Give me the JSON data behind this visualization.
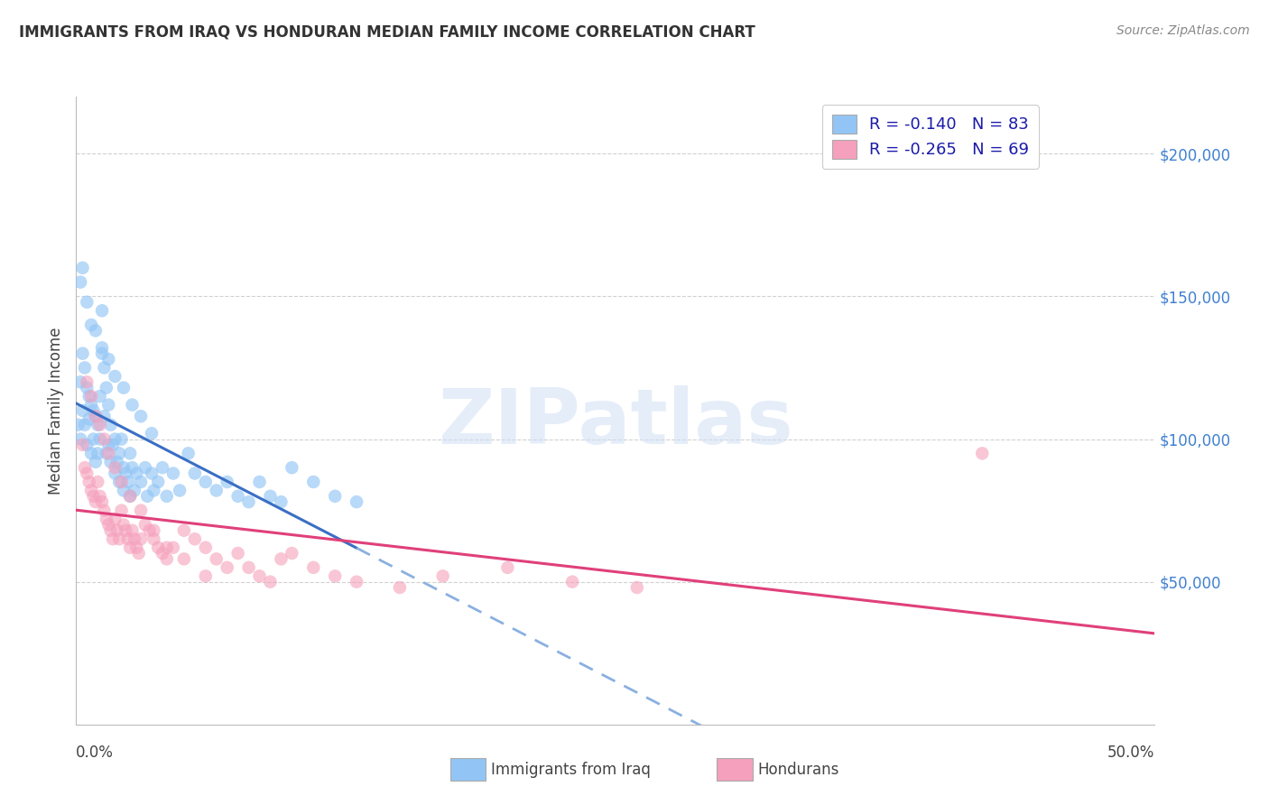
{
  "title": "IMMIGRANTS FROM IRAQ VS HONDURAN MEDIAN FAMILY INCOME CORRELATION CHART",
  "source": "Source: ZipAtlas.com",
  "ylabel": "Median Family Income",
  "ytick_labels": [
    "$50,000",
    "$100,000",
    "$150,000",
    "$200,000"
  ],
  "ytick_values": [
    50000,
    100000,
    150000,
    200000
  ],
  "ylim": [
    0,
    220000
  ],
  "xlim": [
    0.0,
    0.5
  ],
  "xtick_labels": [
    "0.0%",
    "50.0%"
  ],
  "legend_r1": "R = ",
  "legend_rv1": "-0.140",
  "legend_n1": "   N = ",
  "legend_nv1": "83",
  "legend_r2": "R = ",
  "legend_rv2": "-0.265",
  "legend_n2": "   N = ",
  "legend_nv2": "69",
  "legend_label1": "Immigrants from Iraq",
  "legend_label2": "Hondurans",
  "blue_color": "#92c5f5",
  "pink_color": "#f5a0bc",
  "blue_line_color": "#3a6fc4",
  "pink_line_color": "#e0407a",
  "blue_dashed_color": "#8ab0e0",
  "watermark_color": "#ccddf5",
  "background_color": "#ffffff",
  "grid_color": "#cccccc",
  "right_label_color": "#4080d0",
  "iraq_x": [
    0.001,
    0.002,
    0.002,
    0.003,
    0.003,
    0.004,
    0.004,
    0.005,
    0.005,
    0.006,
    0.006,
    0.007,
    0.007,
    0.008,
    0.008,
    0.009,
    0.009,
    0.01,
    0.01,
    0.011,
    0.011,
    0.012,
    0.012,
    0.013,
    0.013,
    0.014,
    0.014,
    0.015,
    0.015,
    0.016,
    0.016,
    0.017,
    0.018,
    0.018,
    0.019,
    0.02,
    0.02,
    0.021,
    0.022,
    0.022,
    0.023,
    0.024,
    0.025,
    0.025,
    0.026,
    0.027,
    0.028,
    0.03,
    0.032,
    0.033,
    0.035,
    0.036,
    0.038,
    0.04,
    0.042,
    0.045,
    0.048,
    0.052,
    0.055,
    0.06,
    0.065,
    0.07,
    0.075,
    0.08,
    0.085,
    0.09,
    0.095,
    0.1,
    0.11,
    0.12,
    0.13,
    0.002,
    0.003,
    0.005,
    0.007,
    0.009,
    0.012,
    0.015,
    0.018,
    0.022,
    0.026,
    0.03,
    0.035
  ],
  "iraq_y": [
    105000,
    120000,
    100000,
    130000,
    110000,
    125000,
    105000,
    118000,
    98000,
    115000,
    107000,
    112000,
    95000,
    110000,
    100000,
    108000,
    92000,
    105000,
    95000,
    115000,
    100000,
    145000,
    130000,
    125000,
    108000,
    118000,
    95000,
    112000,
    98000,
    105000,
    92000,
    98000,
    100000,
    88000,
    92000,
    95000,
    85000,
    100000,
    90000,
    82000,
    88000,
    85000,
    95000,
    80000,
    90000,
    82000,
    88000,
    85000,
    90000,
    80000,
    88000,
    82000,
    85000,
    90000,
    80000,
    88000,
    82000,
    95000,
    88000,
    85000,
    82000,
    85000,
    80000,
    78000,
    85000,
    80000,
    78000,
    90000,
    85000,
    80000,
    78000,
    155000,
    160000,
    148000,
    140000,
    138000,
    132000,
    128000,
    122000,
    118000,
    112000,
    108000,
    102000
  ],
  "honduran_x": [
    0.003,
    0.004,
    0.005,
    0.006,
    0.007,
    0.008,
    0.009,
    0.01,
    0.011,
    0.012,
    0.013,
    0.014,
    0.015,
    0.016,
    0.017,
    0.018,
    0.019,
    0.02,
    0.021,
    0.022,
    0.023,
    0.024,
    0.025,
    0.026,
    0.027,
    0.028,
    0.029,
    0.03,
    0.032,
    0.034,
    0.036,
    0.038,
    0.04,
    0.042,
    0.045,
    0.05,
    0.055,
    0.06,
    0.065,
    0.07,
    0.075,
    0.08,
    0.085,
    0.09,
    0.095,
    0.1,
    0.11,
    0.12,
    0.13,
    0.15,
    0.17,
    0.2,
    0.23,
    0.26,
    0.005,
    0.007,
    0.009,
    0.011,
    0.013,
    0.015,
    0.018,
    0.021,
    0.025,
    0.03,
    0.036,
    0.042,
    0.05,
    0.06,
    0.42
  ],
  "honduran_y": [
    98000,
    90000,
    88000,
    85000,
    82000,
    80000,
    78000,
    85000,
    80000,
    78000,
    75000,
    72000,
    70000,
    68000,
    65000,
    72000,
    68000,
    65000,
    75000,
    70000,
    68000,
    65000,
    62000,
    68000,
    65000,
    62000,
    60000,
    65000,
    70000,
    68000,
    65000,
    62000,
    60000,
    58000,
    62000,
    68000,
    65000,
    62000,
    58000,
    55000,
    60000,
    55000,
    52000,
    50000,
    58000,
    60000,
    55000,
    52000,
    50000,
    48000,
    52000,
    55000,
    50000,
    48000,
    120000,
    115000,
    108000,
    105000,
    100000,
    95000,
    90000,
    85000,
    80000,
    75000,
    68000,
    62000,
    58000,
    52000,
    95000
  ]
}
